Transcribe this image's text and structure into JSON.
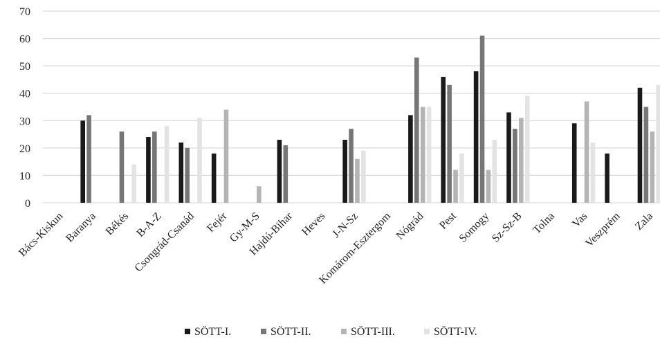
{
  "chart_data": {
    "type": "bar",
    "title": "",
    "xlabel": "",
    "ylabel": "",
    "ylim": [
      0,
      70
    ],
    "yticks": [
      0,
      10,
      20,
      30,
      40,
      50,
      60,
      70
    ],
    "grid": true,
    "legend_position": "bottom",
    "categories": [
      "Bács-Kiskun",
      "Baranya",
      "Békés",
      "B-A-Z",
      "Csongrád-Csanád",
      "Fejér",
      "Gy-M-S",
      "Hajdú-Bihar",
      "Heves",
      "J-N-Sz",
      "Komárom-Esztergom",
      "Nógrád",
      "Pest",
      "Somogy",
      "Sz-Sz-B",
      "Tolna",
      "Vas",
      "Veszprém",
      "Zala"
    ],
    "series": [
      {
        "name": "SÖTT-I.",
        "color": "#1a1a1a",
        "values": [
          0,
          30,
          0,
          24,
          22,
          18,
          0,
          23,
          0,
          23,
          0,
          32,
          46,
          48,
          33,
          0,
          29,
          18,
          42
        ]
      },
      {
        "name": "SÖTT-II.",
        "color": "#767676",
        "values": [
          0,
          32,
          26,
          26,
          20,
          0,
          0,
          21,
          0,
          27,
          0,
          53,
          43,
          61,
          27,
          0,
          0,
          0,
          35
        ]
      },
      {
        "name": "SÖTT-III.",
        "color": "#b4b4b4",
        "values": [
          0,
          0,
          0,
          0,
          0,
          34,
          6,
          0,
          0,
          16,
          0,
          35,
          12,
          12,
          31,
          0,
          37,
          0,
          26
        ]
      },
      {
        "name": "SÖTT-IV.",
        "color": "#e3e3e3",
        "values": [
          0,
          0,
          14,
          28,
          31,
          0,
          0,
          0,
          0,
          19,
          0,
          35,
          18,
          23,
          39,
          0,
          22,
          0,
          43
        ]
      }
    ]
  }
}
